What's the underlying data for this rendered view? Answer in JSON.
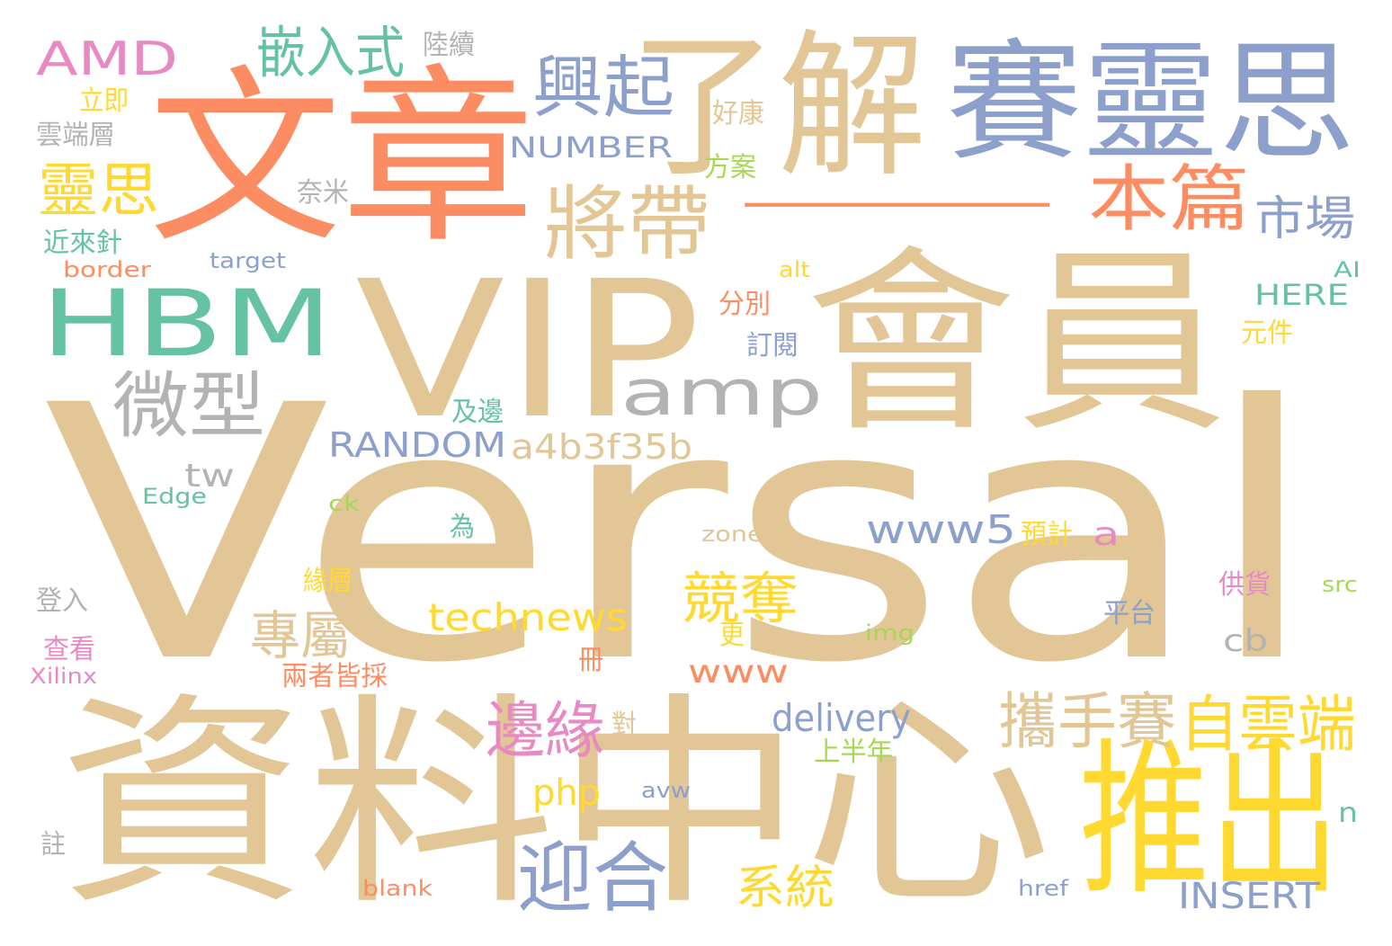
{
  "colors": {
    "tan": "#E2C695",
    "orange": "#FC8D62",
    "blue": "#8DA0CB",
    "green": "#66C2A5",
    "yellow": "#FFD92F",
    "pink": "#E78AC3",
    "gray": "#B3B3B3",
    "lime": "#A6D854"
  },
  "words": [
    {
      "text": "Versal",
      "color": "tan"
    },
    {
      "text": "VIP",
      "color": "tan"
    },
    {
      "text": "文章",
      "color": "orange"
    },
    {
      "text": "一",
      "color": "orange"
    },
    {
      "text": "了解",
      "color": "tan"
    },
    {
      "text": "賽靈思",
      "color": "blue"
    },
    {
      "text": "資料中心",
      "color": "tan"
    },
    {
      "text": "會員",
      "color": "tan"
    },
    {
      "text": "HBM",
      "color": "green"
    },
    {
      "text": "推出",
      "color": "yellow"
    },
    {
      "text": "amp",
      "color": "gray"
    },
    {
      "text": "AMD",
      "color": "pink"
    },
    {
      "text": "興起",
      "color": "blue"
    },
    {
      "text": "將帶",
      "color": "tan"
    },
    {
      "text": "本篇",
      "color": "orange"
    },
    {
      "text": "嵌入式",
      "color": "green"
    },
    {
      "text": "微型",
      "color": "gray"
    },
    {
      "text": "靈思",
      "color": "yellow"
    },
    {
      "text": "市場",
      "color": "blue"
    },
    {
      "text": "迎合",
      "color": "blue"
    },
    {
      "text": "邊緣",
      "color": "pink"
    },
    {
      "text": "攜手賽",
      "color": "tan"
    },
    {
      "text": "自雲端",
      "color": "yellow"
    },
    {
      "text": "專屬",
      "color": "tan"
    },
    {
      "text": "競奪",
      "color": "yellow"
    },
    {
      "text": "RANDOM",
      "color": "blue"
    },
    {
      "text": "a4b3f35b",
      "color": "tan"
    },
    {
      "text": "www5",
      "color": "blue"
    },
    {
      "text": "technews",
      "color": "yellow"
    },
    {
      "text": "NUMBER",
      "color": "blue"
    },
    {
      "text": "系統",
      "color": "yellow"
    },
    {
      "text": "delivery",
      "color": "blue"
    },
    {
      "text": "INSERT",
      "color": "blue"
    },
    {
      "text": "www",
      "color": "orange"
    },
    {
      "text": "php",
      "color": "yellow"
    },
    {
      "text": "tw",
      "color": "gray"
    },
    {
      "text": "a",
      "color": "pink"
    },
    {
      "text": "cb",
      "color": "gray"
    },
    {
      "text": "HERE",
      "color": "green"
    },
    {
      "text": "n",
      "color": "green"
    },
    {
      "text": "陸續",
      "color": "gray"
    },
    {
      "text": "立即",
      "color": "yellow"
    },
    {
      "text": "雲端層",
      "color": "gray"
    },
    {
      "text": "好康",
      "color": "tan"
    },
    {
      "text": "方案",
      "color": "lime"
    },
    {
      "text": "奈米",
      "color": "gray"
    },
    {
      "text": "近來針",
      "color": "green"
    },
    {
      "text": "border",
      "color": "orange"
    },
    {
      "text": "target",
      "color": "blue"
    },
    {
      "text": "alt",
      "color": "yellow"
    },
    {
      "text": "AI",
      "color": "green"
    },
    {
      "text": "分別",
      "color": "orange"
    },
    {
      "text": "訂閱",
      "color": "blue"
    },
    {
      "text": "元件",
      "color": "yellow"
    },
    {
      "text": "及邊",
      "color": "green"
    },
    {
      "text": "Edge",
      "color": "green"
    },
    {
      "text": "ck",
      "color": "lime"
    },
    {
      "text": "為",
      "color": "green"
    },
    {
      "text": "zoneid",
      "color": "tan"
    },
    {
      "text": "預計",
      "color": "yellow"
    },
    {
      "text": "登入",
      "color": "gray"
    },
    {
      "text": "緣層",
      "color": "yellow"
    },
    {
      "text": "供貨",
      "color": "pink"
    },
    {
      "text": "src",
      "color": "lime"
    },
    {
      "text": "平台",
      "color": "blue"
    },
    {
      "text": "更",
      "color": "yellow"
    },
    {
      "text": "img",
      "color": "lime"
    },
    {
      "text": "查看",
      "color": "pink"
    },
    {
      "text": "冊",
      "color": "orange"
    },
    {
      "text": "Xilinx",
      "color": "pink"
    },
    {
      "text": "兩者皆採",
      "color": "orange"
    },
    {
      "text": "對",
      "color": "tan"
    },
    {
      "text": "上半年",
      "color": "lime"
    },
    {
      "text": "avw",
      "color": "blue"
    },
    {
      "text": "註",
      "color": "gray"
    },
    {
      "text": "blank",
      "color": "orange"
    },
    {
      "text": "href",
      "color": "blue"
    }
  ]
}
